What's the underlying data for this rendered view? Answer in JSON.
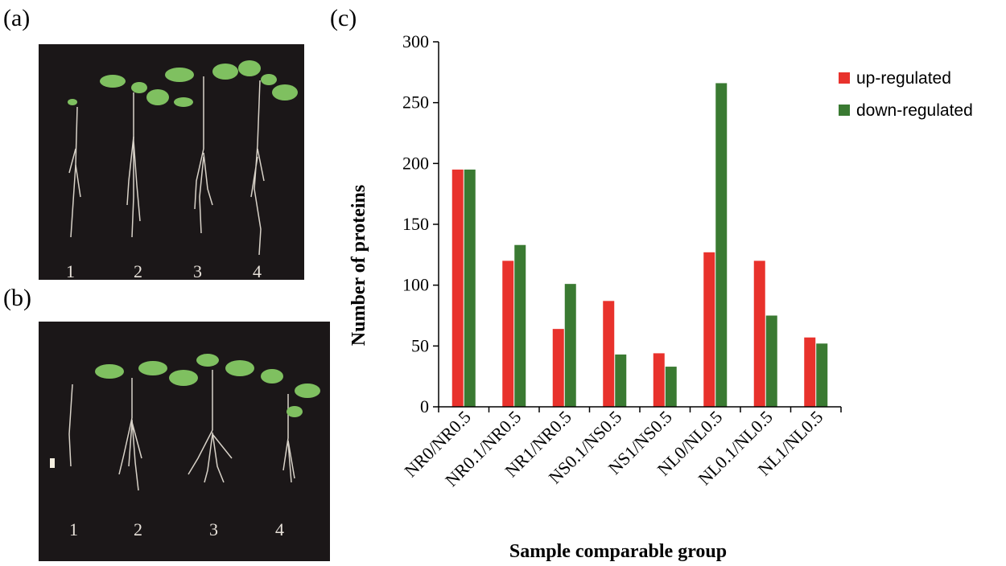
{
  "panels": {
    "a": {
      "label": "(a)",
      "plant_numbers": [
        "1",
        "2",
        "3",
        "4"
      ]
    },
    "b": {
      "label": "(b)",
      "plant_numbers": [
        "1",
        "2",
        "3",
        "4"
      ]
    },
    "c": {
      "label": "(c)"
    }
  },
  "colors": {
    "up": "#e8322c",
    "down": "#3a7a32",
    "photo_bg": "#1b1718"
  },
  "chart_data": {
    "type": "bar",
    "title": "",
    "xlabel": "Sample comparable group",
    "ylabel": "Number of proteins",
    "ylim": [
      0,
      300
    ],
    "yticks": [
      0,
      50,
      100,
      150,
      200,
      250,
      300
    ],
    "categories": [
      "NR0/NR0.5",
      "NR0.1/NR0.5",
      "NR1/NR0.5",
      "NS0.1/NS0.5",
      "NS1/NS0.5",
      "NL0/NL0.5",
      "NL0.1/NL0.5",
      "NL1/NL0.5"
    ],
    "series": [
      {
        "name": "up-regulated",
        "values": [
          195,
          120,
          64,
          87,
          44,
          127,
          120,
          57
        ]
      },
      {
        "name": "down-regulated",
        "values": [
          195,
          133,
          101,
          43,
          33,
          266,
          75,
          52
        ]
      }
    ],
    "legend": "top-right",
    "grid": false
  }
}
